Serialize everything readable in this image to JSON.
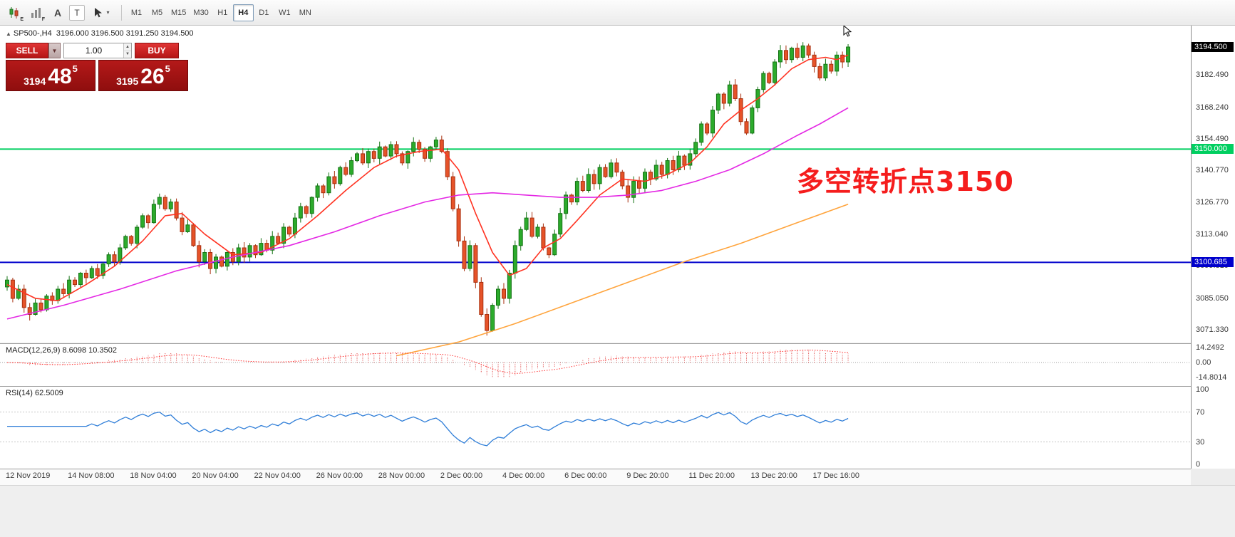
{
  "toolbar": {
    "icons": [
      {
        "name": "candlestick-chart-icon",
        "corner": "E"
      },
      {
        "name": "histogram-icon",
        "corner": "F"
      },
      {
        "name": "text-label-icon",
        "glyph": "A"
      },
      {
        "name": "text-box-icon",
        "glyph": "T"
      },
      {
        "name": "cursor-tool-icon",
        "dropdown": "▾"
      }
    ],
    "timeframes": [
      "M1",
      "M5",
      "M15",
      "M30",
      "H1",
      "H4",
      "D1",
      "W1",
      "MN"
    ],
    "active_timeframe": "H4"
  },
  "chart": {
    "symbol_label": "SP500-,H4",
    "ohlc_text": "3196.000 3196.500 3191.250 3194.500",
    "collapse_marker": "▲",
    "trade_panel": {
      "sell_label": "SELL",
      "buy_label": "BUY",
      "volume": "1.00",
      "bid_prefix": "3194",
      "bid_big": "48",
      "bid_sup": "5",
      "ask_prefix": "3195",
      "ask_big": "26",
      "ask_sup": "5"
    },
    "annotation": {
      "text": "多空转折点3150",
      "color": "#f51d1d"
    },
    "price_scale": {
      "current_badge": {
        "label": "3194.500",
        "price": 3194.5,
        "bg": "#000000",
        "fg": "#ffffff"
      },
      "level_badges": [
        {
          "label": "3150.000",
          "price": 3150.0,
          "bg": "#00cf60",
          "fg": "#ffffff"
        },
        {
          "label": "3100.685",
          "price": 3100.685,
          "bg": "#0000cc",
          "fg": "#ffffff"
        }
      ],
      "ticks": [
        {
          "price": 3182.49,
          "label": "3182.490"
        },
        {
          "price": 3168.24,
          "label": "3168.240"
        },
        {
          "price": 3154.49,
          "label": "3154.490"
        },
        {
          "price": 3140.77,
          "label": "3140.770"
        },
        {
          "price": 3126.77,
          "label": "3126.770"
        },
        {
          "price": 3113.04,
          "label": "3113.040"
        },
        {
          "price": 3099.31,
          "label": "3099.310"
        },
        {
          "price": 3085.05,
          "label": "3085.050"
        },
        {
          "price": 3071.33,
          "label": "3071.330"
        }
      ]
    }
  },
  "macd_panel": {
    "title": "MACD(12,26,9) 8.6098 10.3502",
    "axis_labels": [
      {
        "value": 14.2492,
        "label": "14.2492"
      },
      {
        "value": 0,
        "label": "0.00"
      },
      {
        "value": -14.8014,
        "label": "-14.8014"
      }
    ]
  },
  "rsi_panel": {
    "title": "RSI(14) 62.5009",
    "axis_labels": [
      {
        "value": 100,
        "label": "100"
      },
      {
        "value": 70,
        "label": "70"
      },
      {
        "value": 30,
        "label": "30"
      },
      {
        "value": 0,
        "label": "0"
      }
    ]
  },
  "time_axis": {
    "ticks": [
      {
        "bar": 0,
        "label": "12 Nov 2019"
      },
      {
        "bar": 11,
        "label": "14 Nov 08:00"
      },
      {
        "bar": 22,
        "label": "18 Nov 04:00"
      },
      {
        "bar": 33,
        "label": "20 Nov 04:00"
      },
      {
        "bar": 44,
        "label": "22 Nov 04:00"
      },
      {
        "bar": 55,
        "label": "26 Nov 00:00"
      },
      {
        "bar": 66,
        "label": "28 Nov 00:00"
      },
      {
        "bar": 77,
        "label": "2 Dec 00:00"
      },
      {
        "bar": 88,
        "label": "4 Dec 00:00"
      },
      {
        "bar": 99,
        "label": "6 Dec 00:00"
      },
      {
        "bar": 110,
        "label": "9 Dec 20:00"
      },
      {
        "bar": 121,
        "label": "11 Dec 20:00"
      },
      {
        "bar": 132,
        "label": "13 Dec 20:00"
      },
      {
        "bar": 143,
        "label": "17 Dec 16:00"
      }
    ]
  },
  "chart_data": {
    "type": "candlestick",
    "symbol": "SP500-",
    "timeframe": "H4",
    "current_ohlc": {
      "open": 3196.0,
      "high": 3196.5,
      "low": 3191.25,
      "close": 3194.5
    },
    "y_range": [
      3064,
      3204
    ],
    "first_open": 3090,
    "closes": [
      3093,
      3085,
      3089,
      3081,
      3078,
      3083,
      3080,
      3086,
      3084,
      3089,
      3087,
      3093,
      3091,
      3096,
      3094,
      3098,
      3095,
      3100,
      3104,
      3101,
      3107,
      3112,
      3109,
      3116,
      3121,
      3118,
      3126,
      3129,
      3124,
      3127,
      3120,
      3114,
      3117,
      3108,
      3101,
      3105,
      3098,
      3103,
      3099,
      3105,
      3101,
      3107,
      3103,
      3108,
      3104,
      3109,
      3106,
      3112,
      3109,
      3116,
      3113,
      3120,
      3125,
      3122,
      3129,
      3134,
      3131,
      3138,
      3135,
      3142,
      3139,
      3145,
      3148,
      3144,
      3149,
      3146,
      3151,
      3147,
      3152,
      3148,
      3144,
      3149,
      3153,
      3150,
      3146,
      3151,
      3154,
      3149,
      3138,
      3124,
      3110,
      3098,
      3108,
      3092,
      3078,
      3071,
      3082,
      3089,
      3085,
      3096,
      3108,
      3115,
      3120,
      3112,
      3116,
      3107,
      3104,
      3113,
      3122,
      3130,
      3127,
      3136,
      3132,
      3139,
      3135,
      3142,
      3138,
      3144,
      3140,
      3134,
      3129,
      3136,
      3133,
      3140,
      3137,
      3143,
      3139,
      3145,
      3141,
      3147,
      3143,
      3148,
      3153,
      3161,
      3157,
      3167,
      3174,
      3170,
      3178,
      3172,
      3162,
      3157,
      3168,
      3176,
      3183,
      3179,
      3188,
      3193,
      3189,
      3194,
      3190,
      3195,
      3191,
      3186,
      3181,
      3187,
      3184,
      3191,
      3188,
      3194.5
    ],
    "candle_colors": {
      "up_fill": "#2cab2c",
      "up_stroke": "#147314",
      "down_fill": "#e65329",
      "down_stroke": "#a7300f"
    },
    "horizontal_lines": [
      {
        "price": 3150.0,
        "color": "#00cf60",
        "width": 2
      },
      {
        "price": 3100.685,
        "color": "#0000cc",
        "width": 2
      }
    ],
    "moving_averages": [
      {
        "name": "fast-ma",
        "color": "#ff3322",
        "anchors": [
          [
            0,
            3091
          ],
          [
            5,
            3085
          ],
          [
            9,
            3084
          ],
          [
            14,
            3091
          ],
          [
            19,
            3099
          ],
          [
            24,
            3110
          ],
          [
            28,
            3121
          ],
          [
            31,
            3122
          ],
          [
            35,
            3113
          ],
          [
            40,
            3104
          ],
          [
            45,
            3105
          ],
          [
            50,
            3111
          ],
          [
            55,
            3121
          ],
          [
            60,
            3132
          ],
          [
            65,
            3142
          ],
          [
            69,
            3147
          ],
          [
            73,
            3149
          ],
          [
            77,
            3150
          ],
          [
            80,
            3141
          ],
          [
            83,
            3122
          ],
          [
            86,
            3105
          ],
          [
            89,
            3095
          ],
          [
            92,
            3098
          ],
          [
            95,
            3107
          ],
          [
            98,
            3111
          ],
          [
            101,
            3119
          ],
          [
            105,
            3130
          ],
          [
            109,
            3137
          ],
          [
            113,
            3136
          ],
          [
            117,
            3139
          ],
          [
            121,
            3144
          ],
          [
            124,
            3151
          ],
          [
            127,
            3161
          ],
          [
            130,
            3167
          ],
          [
            133,
            3172
          ],
          [
            136,
            3178
          ],
          [
            139,
            3185
          ],
          [
            142,
            3189
          ],
          [
            145,
            3190
          ],
          [
            147,
            3189
          ],
          [
            149,
            3191
          ]
        ]
      },
      {
        "name": "mid-ma",
        "color": "#e428e4",
        "anchors": [
          [
            0,
            3076
          ],
          [
            10,
            3082
          ],
          [
            20,
            3089
          ],
          [
            30,
            3097
          ],
          [
            40,
            3103
          ],
          [
            50,
            3108
          ],
          [
            58,
            3114
          ],
          [
            66,
            3121
          ],
          [
            74,
            3127
          ],
          [
            80,
            3130
          ],
          [
            86,
            3131
          ],
          [
            92,
            3130
          ],
          [
            98,
            3129
          ],
          [
            104,
            3129
          ],
          [
            110,
            3130
          ],
          [
            116,
            3132
          ],
          [
            122,
            3136
          ],
          [
            128,
            3141
          ],
          [
            134,
            3148
          ],
          [
            140,
            3156
          ],
          [
            144,
            3161
          ],
          [
            149,
            3168
          ]
        ]
      },
      {
        "name": "slow-ma",
        "color": "#ffa43c",
        "anchors": [
          [
            69,
            3060
          ],
          [
            80,
            3066
          ],
          [
            90,
            3074
          ],
          [
            100,
            3083
          ],
          [
            110,
            3092
          ],
          [
            120,
            3101
          ],
          [
            130,
            3109
          ],
          [
            140,
            3118
          ],
          [
            149,
            3126
          ]
        ]
      }
    ],
    "indicators": {
      "macd": {
        "params": [
          12,
          26,
          9
        ],
        "current_main": 8.6098,
        "current_signal": 10.3502,
        "axis_max": 14.2492,
        "axis_min": -14.8014,
        "color": "#e04a4a"
      },
      "rsi": {
        "period": 14,
        "current": 62.5009,
        "levels": [
          70,
          30
        ],
        "color": "#2f7ed8"
      }
    }
  }
}
